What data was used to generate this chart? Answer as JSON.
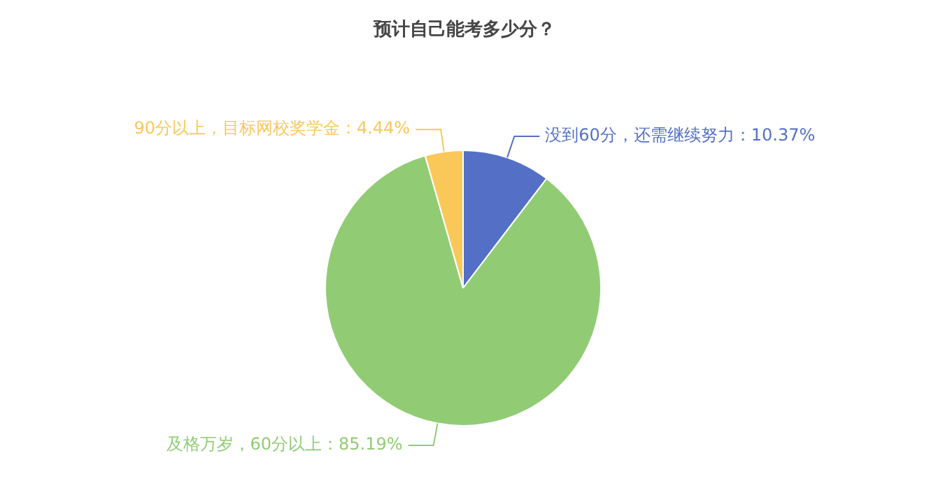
{
  "chart_data": {
    "type": "pie",
    "title": "预计自己能考多少分？",
    "categories": [
      "没到60分，还需继续努力",
      "及格万岁，60分以上",
      "90分以上，目标网校奖学金"
    ],
    "values": [
      10.37,
      85.19,
      4.44
    ],
    "value_labels": [
      "10.37%",
      "85.19%",
      "4.44%"
    ],
    "colors": [
      "#5470c6",
      "#91cc75",
      "#fac858"
    ]
  }
}
